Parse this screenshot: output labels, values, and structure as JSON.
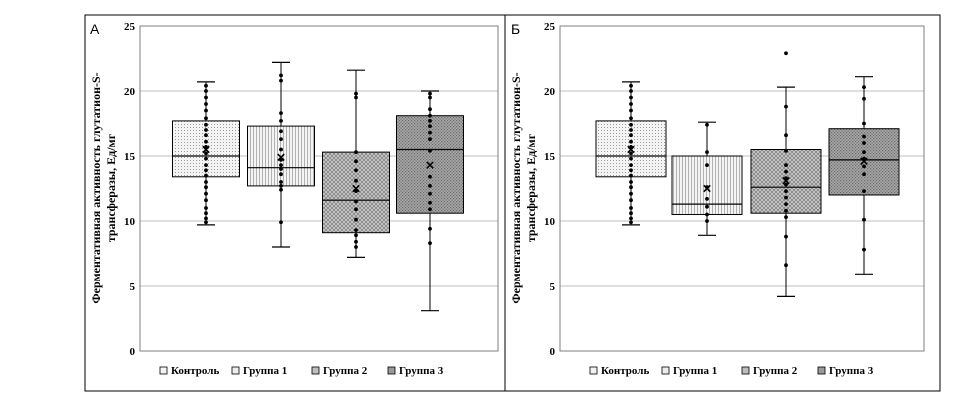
{
  "chart_data": [
    {
      "panel": "А",
      "type": "box",
      "ylabel": "Ферментативная активность глутатион-S-трансферазы, Ед/мг",
      "ylabel_lines": [
        "Ферментативная активность глутатион-S-",
        "трансферазы, Ед/мг"
      ],
      "ylim": [
        0,
        25
      ],
      "yticks": [
        0,
        5,
        10,
        15,
        20,
        25
      ],
      "grid": true,
      "legend_position": "bottom",
      "categories": [
        "Контроль",
        "Группа 1",
        "Группа 2",
        "Группа 3"
      ],
      "series": [
        {
          "name": "Контроль",
          "min": 9.7,
          "q1": 13.4,
          "median": 15.0,
          "q3": 17.7,
          "max": 20.7,
          "mean": 15.5,
          "points": [
            9.9,
            10.2,
            10.6,
            11.0,
            11.6,
            12.1,
            12.6,
            13.0,
            13.5,
            13.9,
            14.3,
            14.8,
            15.2,
            15.7,
            16.1,
            16.6,
            17.0,
            17.4,
            17.9,
            18.5,
            19.0,
            19.5,
            20.0,
            20.4
          ]
        },
        {
          "name": "Группа 1",
          "min": 8.0,
          "q1": 12.7,
          "median": 14.1,
          "q3": 17.3,
          "max": 22.2,
          "mean": 14.9,
          "points": [
            9.9,
            12.4,
            12.7,
            13.0,
            13.6,
            14.0,
            14.3,
            14.7,
            15.5,
            16.3,
            16.9,
            17.7,
            18.3,
            20.8,
            21.2
          ]
        },
        {
          "name": "Группа 2",
          "min": 7.2,
          "q1": 9.1,
          "median": 11.6,
          "q3": 15.3,
          "max": 21.6,
          "mean": 12.5,
          "points": [
            8.0,
            8.4,
            8.9,
            9.3,
            10.1,
            10.9,
            11.5,
            12.3,
            13.1,
            13.9,
            14.6,
            15.3,
            19.5,
            19.8
          ]
        },
        {
          "name": "Группа 3",
          "min": 3.1,
          "q1": 10.6,
          "median": 15.5,
          "q3": 18.1,
          "max": 20.0,
          "mean": 14.3,
          "points": [
            8.3,
            9.4,
            10.9,
            11.4,
            12.1,
            12.7,
            13.4,
            15.4,
            16.3,
            16.8,
            17.3,
            17.7,
            18.1,
            18.6,
            19.5,
            19.8
          ]
        }
      ]
    },
    {
      "panel": "Б",
      "type": "box",
      "ylabel": "Ферментативная активность глутатион-S-трансферазы, Ед/мг",
      "ylabel_lines": [
        "Ферментативная активность глутатион-S-",
        "трансферазы, Ед/мг"
      ],
      "ylim": [
        0,
        25
      ],
      "yticks": [
        0,
        5,
        10,
        15,
        20,
        25
      ],
      "grid": true,
      "legend_position": "bottom",
      "categories": [
        "Контроль",
        "Группа 1",
        "Группа 2",
        "Группа 3"
      ],
      "series": [
        {
          "name": "Контроль",
          "min": 9.7,
          "q1": 13.4,
          "median": 15.0,
          "q3": 17.7,
          "max": 20.7,
          "mean": 15.5,
          "points": [
            9.9,
            10.2,
            10.6,
            11.0,
            11.6,
            12.1,
            12.6,
            13.0,
            13.5,
            13.9,
            14.3,
            14.8,
            15.2,
            15.7,
            16.1,
            16.6,
            17.0,
            17.4,
            17.9,
            18.5,
            19.0,
            19.5,
            20.0,
            20.4
          ]
        },
        {
          "name": "Группа 1",
          "min": 8.9,
          "q1": 10.5,
          "median": 11.3,
          "q3": 15.0,
          "max": 17.6,
          "mean": 12.5,
          "points": [
            10.0,
            10.5,
            11.1,
            11.7,
            12.6,
            14.3,
            15.3,
            17.4
          ]
        },
        {
          "name": "Группа 2",
          "min": 4.2,
          "q1": 10.6,
          "median": 12.6,
          "q3": 15.5,
          "max": 20.3,
          "mean": 13.1,
          "points": [
            6.6,
            8.8,
            10.3,
            10.8,
            11.3,
            11.8,
            12.3,
            12.8,
            13.3,
            13.8,
            14.3,
            15.4,
            16.6,
            18.8,
            22.9
          ]
        },
        {
          "name": "Группа 3",
          "min": 5.9,
          "q1": 12.0,
          "median": 14.7,
          "q3": 17.1,
          "max": 21.1,
          "mean": 14.6,
          "points": [
            7.8,
            10.1,
            12.3,
            13.6,
            14.2,
            14.8,
            15.3,
            16.0,
            16.5,
            17.5,
            19.4,
            20.3
          ]
        }
      ]
    }
  ],
  "colors": {
    "box_fill": [
      "#f3f3f3",
      "#ececec",
      "#bdbdbd",
      "#9a9a9a"
    ],
    "stroke": "#000000",
    "grid": "#bfbfbf",
    "frame": "#000000"
  }
}
